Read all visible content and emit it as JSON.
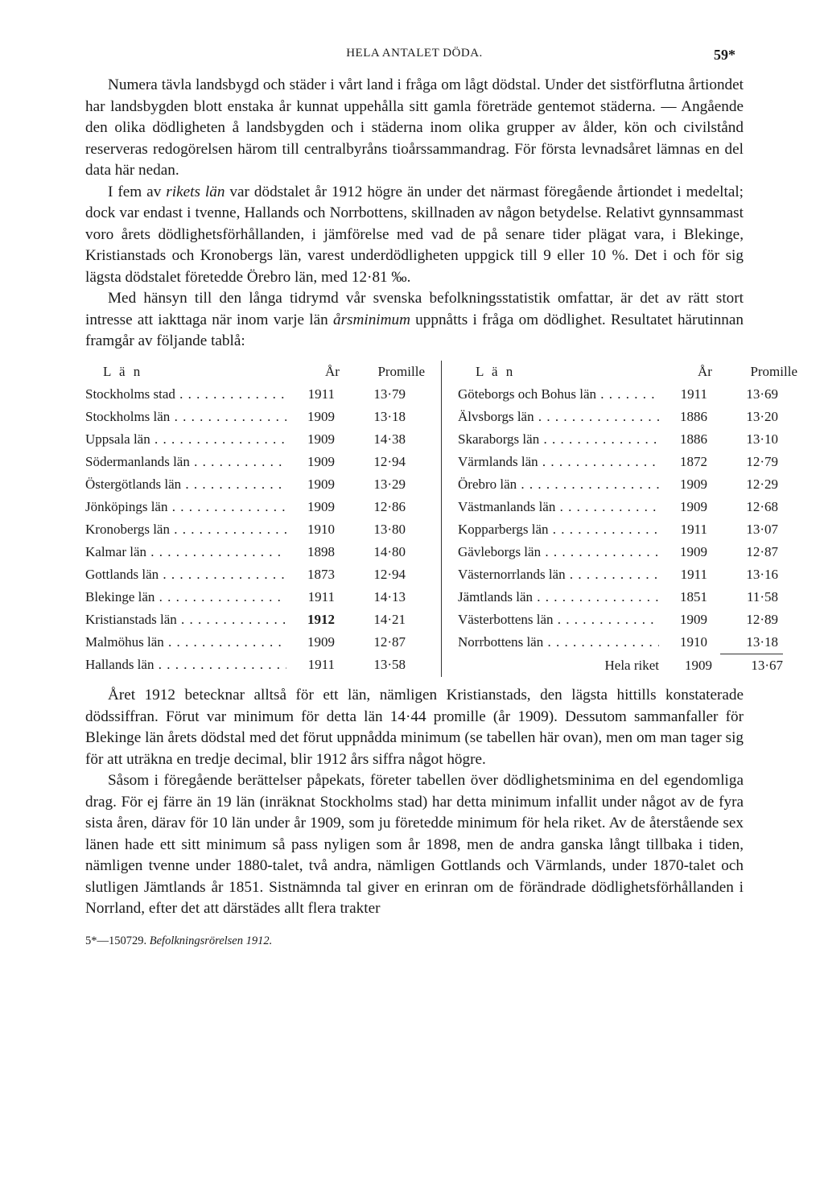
{
  "header": {
    "title": "HELA ANTALET DÖDA.",
    "page": "59*"
  },
  "para1": "Numera tävla landsbygd och städer i vårt land i fråga om lågt dödstal. Under det sistförflutna årtiondet har landsbygden blott enstaka år kunnat uppehålla sitt gamla företräde gentemot städerna. — Angående den olika dödligheten å landsbygden och i städerna inom olika grupper av ålder, kön och civilstånd reserveras redogörelsen härom till centralbyråns tioårssammandrag. För första levnadsåret lämnas en del data här nedan.",
  "para2a": "I fem av ",
  "para2it": "rikets län",
  "para2b": " var dödstalet år 1912 högre än under det närmast föregående årtiondet i medeltal; dock var endast i tvenne, Hallands och Norrbottens, skillnaden av någon betydelse. Relativt gynnsammast voro årets dödlighetsförhållanden, i jämförelse med vad de på senare tider plägat vara, i Blekinge, Kristianstads och Kronobergs län, varest underdödligheten uppgick till 9 eller 10 %. Det i och för sig lägsta dödstalet företedde Örebro län, med 12·81 ‰.",
  "para3a": "Med hänsyn till den långa tidrymd vår svenska befolkningsstatistik omfattar, är det av rätt stort intresse att iakttaga när inom varje län ",
  "para3it": "årsminimum",
  "para3b": " uppnåtts i fråga om dödlighet. Resultatet härutinnan framgår av följande tablå:",
  "table": {
    "head": {
      "lan": "L ä n",
      "ar": "År",
      "pm": "Promille"
    },
    "left": [
      {
        "lan": "Stockholms stad",
        "ar": "1911",
        "pm": "13·79"
      },
      {
        "lan": "Stockholms län",
        "ar": "1909",
        "pm": "13·18"
      },
      {
        "lan": "Uppsala län",
        "ar": "1909",
        "pm": "14·38"
      },
      {
        "lan": "Södermanlands län",
        "ar": "1909",
        "pm": "12·94"
      },
      {
        "lan": "Östergötlands län",
        "ar": "1909",
        "pm": "13·29"
      },
      {
        "lan": "Jönköpings län",
        "ar": "1909",
        "pm": "12·86"
      },
      {
        "lan": "Kronobergs län",
        "ar": "1910",
        "pm": "13·80"
      },
      {
        "lan": "Kalmar län",
        "ar": "1898",
        "pm": "14·80"
      },
      {
        "lan": "Gottlands län",
        "ar": "1873",
        "pm": "12·94"
      },
      {
        "lan": "Blekinge län",
        "ar": "1911",
        "pm": "14·13"
      },
      {
        "lan": "Kristianstads län",
        "ar": "1912",
        "pm": "14·21",
        "bold_ar": true
      },
      {
        "lan": "Malmöhus län",
        "ar": "1909",
        "pm": "12·87"
      },
      {
        "lan": "Hallands län",
        "ar": "1911",
        "pm": "13·58"
      }
    ],
    "right": [
      {
        "lan": "Göteborgs och Bohus län",
        "ar": "1911",
        "pm": "13·69"
      },
      {
        "lan": "Älvsborgs län",
        "ar": "1886",
        "pm": "13·20"
      },
      {
        "lan": "Skaraborgs län",
        "ar": "1886",
        "pm": "13·10"
      },
      {
        "lan": "Värmlands län",
        "ar": "1872",
        "pm": "12·79"
      },
      {
        "lan": "Örebro län",
        "ar": "1909",
        "pm": "12·29"
      },
      {
        "lan": "Västmanlands län",
        "ar": "1909",
        "pm": "12·68"
      },
      {
        "lan": "Kopparbergs län",
        "ar": "1911",
        "pm": "13·07"
      },
      {
        "lan": "Gävleborgs län",
        "ar": "1909",
        "pm": "12·87"
      },
      {
        "lan": "Västernorrlands län",
        "ar": "1911",
        "pm": "13·16"
      },
      {
        "lan": "Jämtlands län",
        "ar": "1851",
        "pm": "11·58"
      },
      {
        "lan": "Västerbottens län",
        "ar": "1909",
        "pm": "12·89"
      },
      {
        "lan": "Norrbottens län",
        "ar": "1910",
        "pm": "13·18"
      }
    ],
    "total": {
      "lan": "Hela riket",
      "ar": "1909",
      "pm": "13·67"
    }
  },
  "para4": "Året 1912 betecknar alltså för ett län, nämligen Kristianstads, den lägsta hittills konstaterade dödssiffran. Förut var minimum för detta län 14·44 promille (år 1909). Dessutom sammanfaller för Blekinge län årets dödstal med det förut uppnådda minimum (se tabellen här ovan), men om man tager sig för att uträkna en tredje decimal, blir 1912 års siffra något högre.",
  "para5": "Såsom i föregående berättelser påpekats, företer tabellen över dödlighetsminima en del egendomliga drag. För ej färre än 19 län (inräknat Stockholms stad) har detta minimum infallit under något av de fyra sista åren, därav för 10 län under år 1909, som ju företedde minimum för hela riket. Av de återstående sex länen hade ett sitt minimum så pass nyligen som år 1898, men de andra ganska långt tillbaka i tiden, nämligen tvenne under 1880-talet, två andra, nämligen Gottlands och Värmlands, under 1870-talet och slutligen Jämtlands år 1851. Sistnämnda tal giver en erinran om de förändrade dödlighetsförhållanden i Norrland, efter det att därstädes allt flera trakter",
  "footer": {
    "sig": "5*—150729.",
    "title": "Befolkningsrörelsen 1912."
  }
}
